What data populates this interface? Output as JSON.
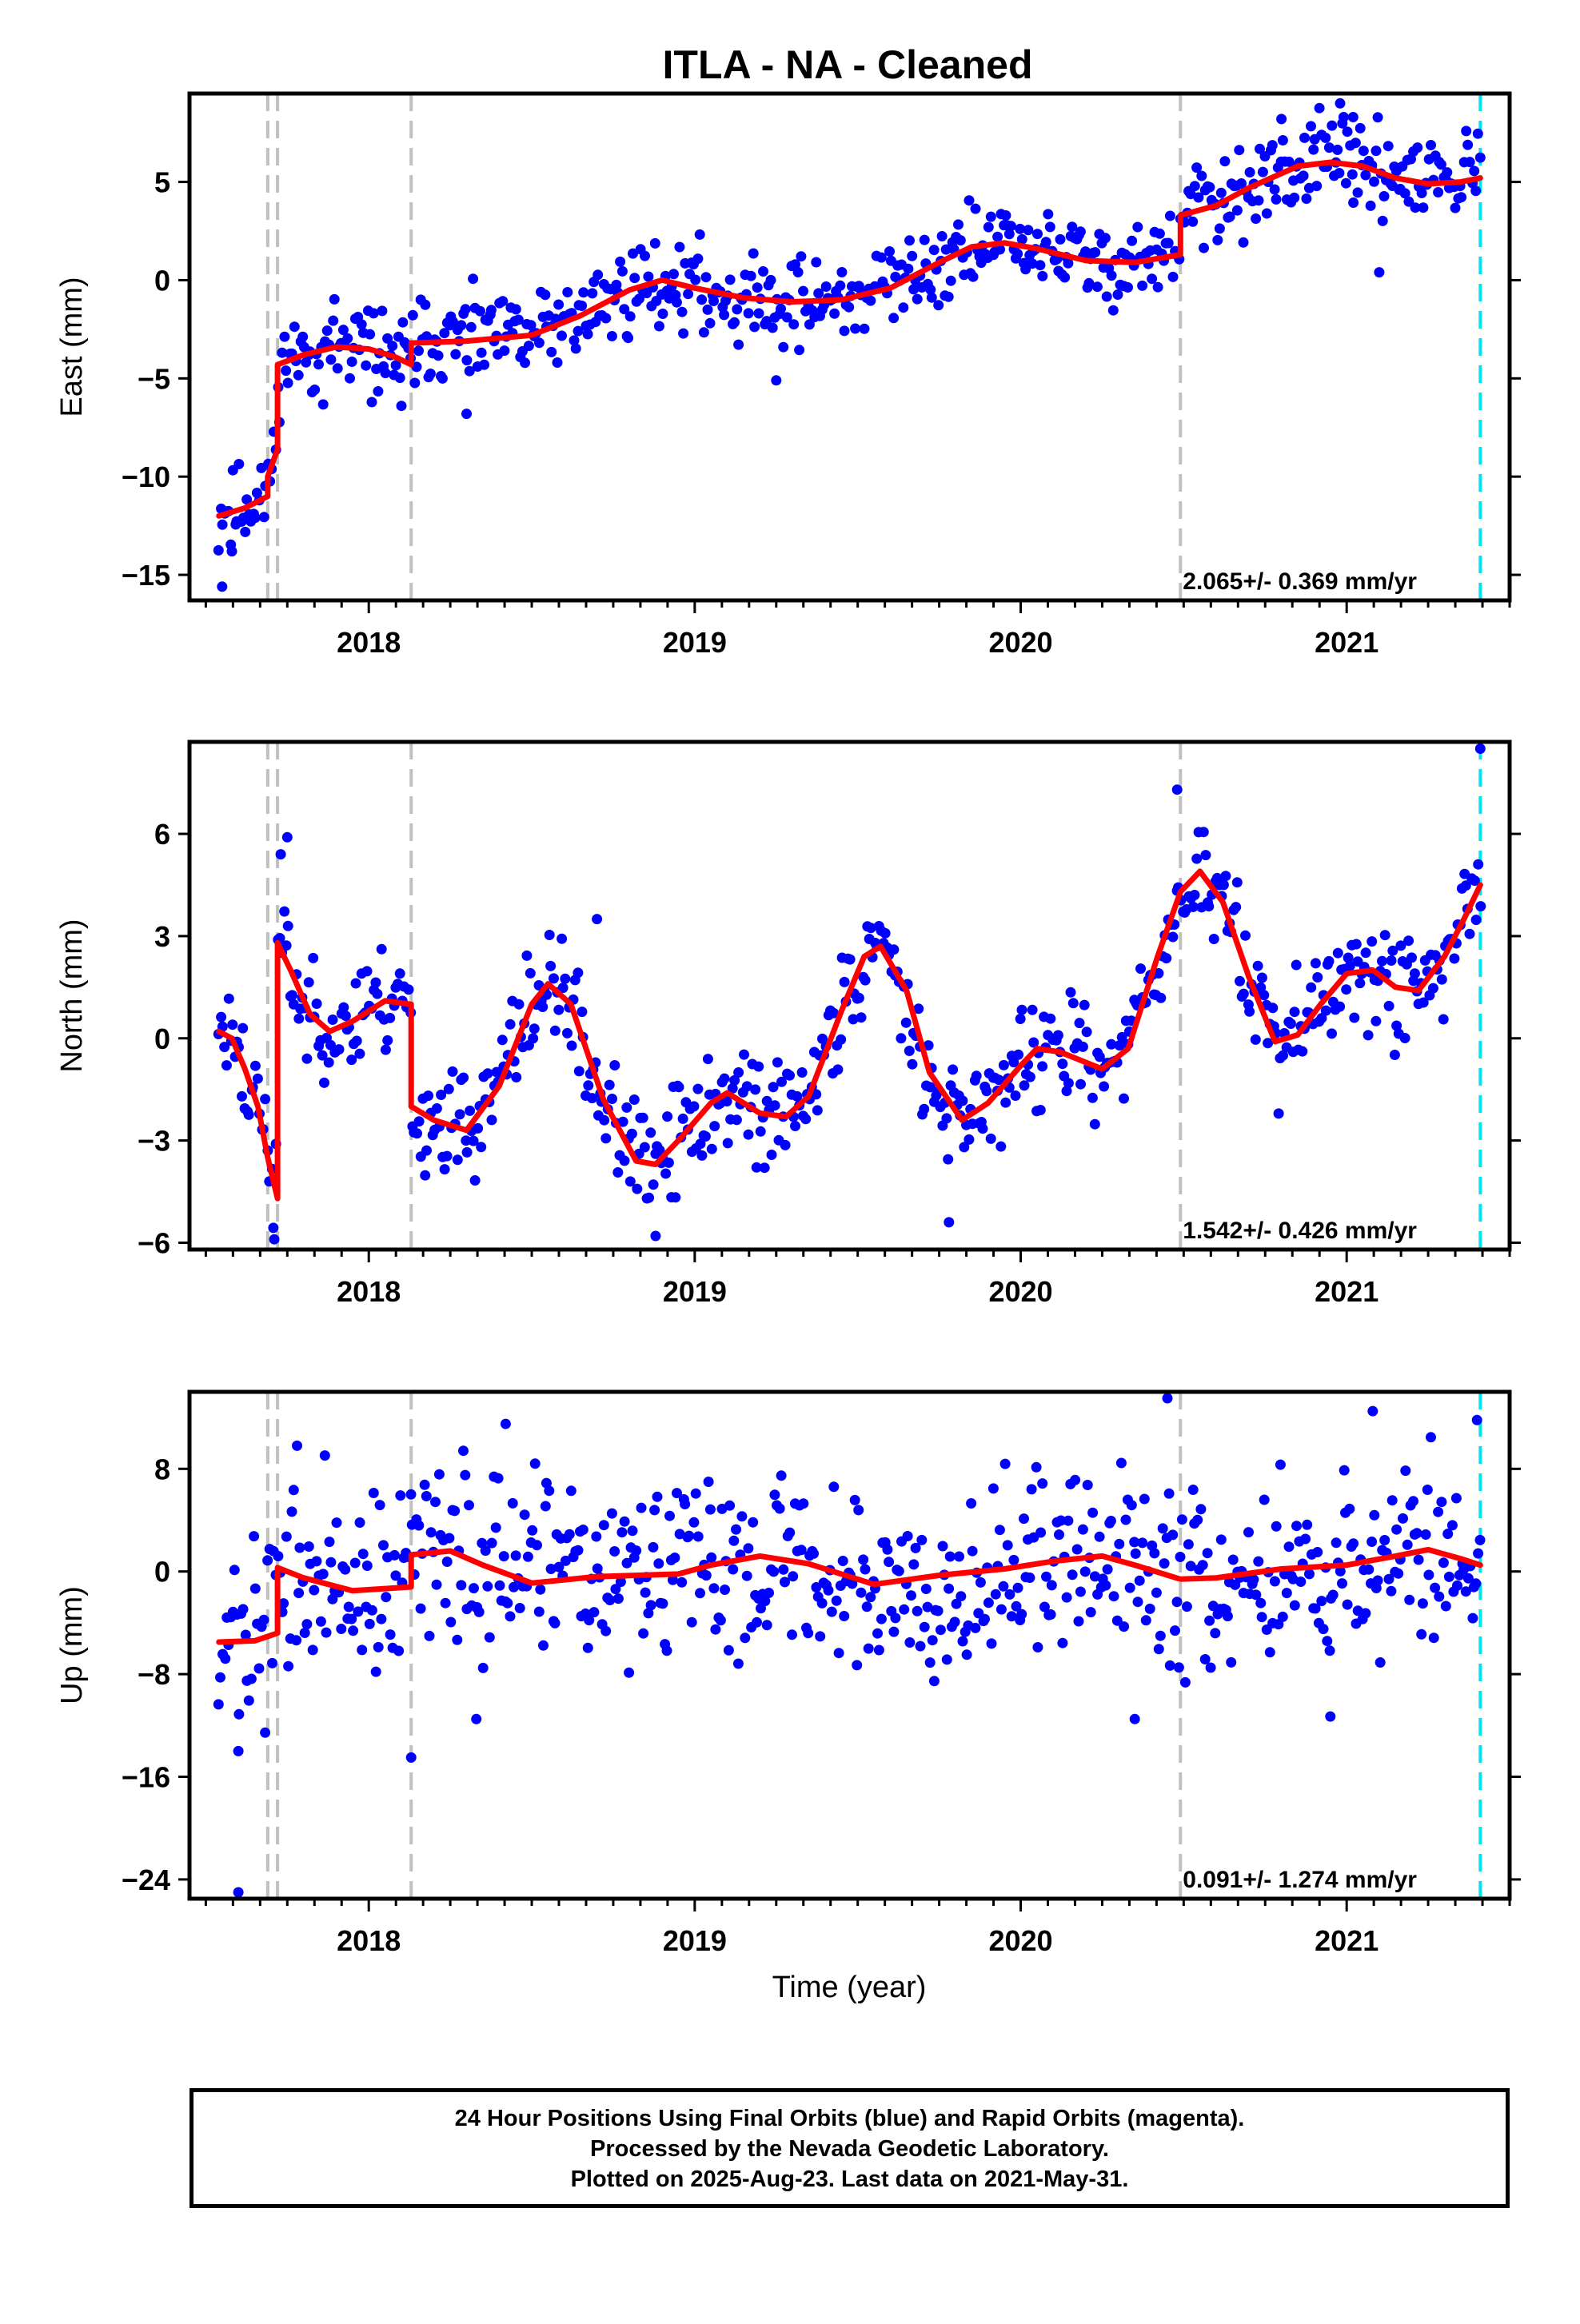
{
  "title": "ITLA  - NA - Cleaned",
  "xlabel": "Time (year)",
  "footer": {
    "line1": "24 Hour Positions Using Final Orbits (blue) and Rapid Orbits (magenta).",
    "line2": "Processed by the Nevada Geodetic Laboratory.",
    "line3": "Plotted on 2025-Aug-23. Last data on 2021-May-31."
  },
  "colors": {
    "points": "#0000ff",
    "model": "#ff0000",
    "equipment_change": "#c0c0c0",
    "last_data": "#00e5ee",
    "frame": "#000000"
  },
  "chart_data": [
    {
      "type": "scatter",
      "ylabel": "East (mm)",
      "xlim": [
        2017.45,
        2021.5
      ],
      "ylim": [
        -16.3,
        9.5
      ],
      "x_ticks": [
        2018,
        2019,
        2020,
        2021
      ],
      "y_ticks": [
        -15,
        -10,
        -5,
        0,
        5
      ],
      "y_tick_labels": [
        "−15",
        "−10",
        "−5",
        "0",
        "5"
      ],
      "rate": "2.065+/- 0.369 mm/yr",
      "grey_dashed_lines_x": [
        2017.69,
        2017.72,
        2018.13,
        2020.49
      ],
      "cyan_dashed_line_x": 2021.41,
      "model_curve": [
        [
          2017.54,
          -12.0
        ],
        [
          2017.62,
          -11.6
        ],
        [
          2017.69,
          -11.0
        ],
        [
          2017.69,
          -10.0
        ],
        [
          2017.72,
          -8.6
        ],
        [
          2017.72,
          -4.3
        ],
        [
          2017.8,
          -3.8
        ],
        [
          2017.9,
          -3.4
        ],
        [
          2018.0,
          -3.5
        ],
        [
          2018.08,
          -3.9
        ],
        [
          2018.13,
          -4.3
        ],
        [
          2018.13,
          -3.2
        ],
        [
          2018.3,
          -3.1
        ],
        [
          2018.5,
          -2.8
        ],
        [
          2018.65,
          -1.8
        ],
        [
          2018.8,
          -0.5
        ],
        [
          2018.9,
          0.0
        ],
        [
          2019.0,
          -0.4
        ],
        [
          2019.15,
          -0.9
        ],
        [
          2019.3,
          -1.1
        ],
        [
          2019.45,
          -1.0
        ],
        [
          2019.6,
          -0.4
        ],
        [
          2019.75,
          0.9
        ],
        [
          2019.85,
          1.7
        ],
        [
          2019.95,
          1.9
        ],
        [
          2020.05,
          1.6
        ],
        [
          2020.2,
          1.0
        ],
        [
          2020.35,
          0.9
        ],
        [
          2020.49,
          1.3
        ],
        [
          2020.49,
          3.3
        ],
        [
          2020.6,
          3.8
        ],
        [
          2020.7,
          4.7
        ],
        [
          2020.85,
          5.8
        ],
        [
          2020.95,
          6.0
        ],
        [
          2021.05,
          5.8
        ],
        [
          2021.15,
          5.2
        ],
        [
          2021.25,
          4.9
        ],
        [
          2021.35,
          5.0
        ],
        [
          2021.41,
          5.2
        ]
      ],
      "scatter": {
        "n": 620,
        "start": 2017.54,
        "end": 2021.41,
        "noise": 1.1,
        "seed": 11,
        "outliers": [
          [
            2017.55,
            -15.6
          ],
          [
            2017.58,
            -13.8
          ],
          [
            2018.1,
            -6.4
          ],
          [
            2018.3,
            -6.8
          ],
          [
            2019.25,
            -5.1
          ],
          [
            2020.98,
            9.0
          ],
          [
            2021.02,
            8.3
          ],
          [
            2020.8,
            8.2
          ],
          [
            2021.1,
            0.4
          ]
        ]
      }
    },
    {
      "type": "scatter",
      "ylabel": "North (mm)",
      "xlim": [
        2017.45,
        2021.5
      ],
      "ylim": [
        -6.2,
        8.7
      ],
      "x_ticks": [
        2018,
        2019,
        2020,
        2021
      ],
      "y_ticks": [
        -6,
        -3,
        0,
        3,
        6
      ],
      "y_tick_labels": [
        "−6",
        "−3",
        "0",
        "3",
        "6"
      ],
      "rate": "1.542+/- 0.426 mm/yr",
      "grey_dashed_lines_x": [
        2017.69,
        2017.72,
        2018.13,
        2020.49
      ],
      "cyan_dashed_line_x": 2021.41,
      "model_curve": [
        [
          2017.54,
          0.2
        ],
        [
          2017.58,
          0.0
        ],
        [
          2017.62,
          -0.9
        ],
        [
          2017.66,
          -2.0
        ],
        [
          2017.69,
          -3.5
        ],
        [
          2017.72,
          -4.7
        ],
        [
          2017.72,
          2.8
        ],
        [
          2017.76,
          2.0
        ],
        [
          2017.82,
          0.7
        ],
        [
          2017.88,
          0.2
        ],
        [
          2017.95,
          0.5
        ],
        [
          2018.05,
          1.1
        ],
        [
          2018.13,
          1.0
        ],
        [
          2018.13,
          -2.0
        ],
        [
          2018.2,
          -2.4
        ],
        [
          2018.3,
          -2.7
        ],
        [
          2018.4,
          -1.4
        ],
        [
          2018.5,
          1.0
        ],
        [
          2018.55,
          1.6
        ],
        [
          2018.62,
          1.0
        ],
        [
          2018.72,
          -1.8
        ],
        [
          2018.82,
          -3.6
        ],
        [
          2018.88,
          -3.7
        ],
        [
          2018.95,
          -3.0
        ],
        [
          2019.05,
          -1.9
        ],
        [
          2019.1,
          -1.6
        ],
        [
          2019.2,
          -2.2
        ],
        [
          2019.28,
          -2.3
        ],
        [
          2019.35,
          -1.7
        ],
        [
          2019.45,
          0.8
        ],
        [
          2019.52,
          2.4
        ],
        [
          2019.57,
          2.7
        ],
        [
          2019.65,
          1.4
        ],
        [
          2019.72,
          -1.0
        ],
        [
          2019.82,
          -2.4
        ],
        [
          2019.9,
          -1.9
        ],
        [
          2020.0,
          -0.8
        ],
        [
          2020.05,
          -0.3
        ],
        [
          2020.12,
          -0.4
        ],
        [
          2020.25,
          -0.9
        ],
        [
          2020.33,
          -0.3
        ],
        [
          2020.42,
          2.4
        ],
        [
          2020.49,
          4.3
        ],
        [
          2020.55,
          4.9
        ],
        [
          2020.62,
          4.0
        ],
        [
          2020.7,
          1.8
        ],
        [
          2020.78,
          -0.1
        ],
        [
          2020.85,
          0.1
        ],
        [
          2020.92,
          1.0
        ],
        [
          2021.0,
          1.9
        ],
        [
          2021.08,
          2.0
        ],
        [
          2021.15,
          1.5
        ],
        [
          2021.22,
          1.4
        ],
        [
          2021.3,
          2.4
        ],
        [
          2021.36,
          3.5
        ],
        [
          2021.41,
          4.5
        ]
      ],
      "scatter": {
        "n": 620,
        "start": 2017.54,
        "end": 2021.41,
        "noise": 0.8,
        "seed": 23,
        "outliers": [
          [
            2017.73,
            5.4
          ],
          [
            2017.75,
            5.9
          ],
          [
            2017.71,
            -5.9
          ],
          [
            2018.88,
            -5.8
          ],
          [
            2019.78,
            -5.4
          ],
          [
            2020.48,
            7.3
          ],
          [
            2021.41,
            8.5
          ],
          [
            2018.7,
            3.5
          ]
        ]
      }
    },
    {
      "type": "scatter",
      "ylabel": "Up (mm)",
      "xlim": [
        2017.45,
        2021.5
      ],
      "ylim": [
        -25.5,
        14.0
      ],
      "x_ticks": [
        2018,
        2019,
        2020,
        2021
      ],
      "y_ticks": [
        -24,
        -16,
        -8,
        0,
        8
      ],
      "y_tick_labels": [
        "−24",
        "−16",
        "−8",
        "0",
        "8"
      ],
      "rate": "0.091+/- 1.274 mm/yr",
      "grey_dashed_lines_x": [
        2017.69,
        2017.72,
        2018.13,
        2020.49
      ],
      "cyan_dashed_line_x": 2021.41,
      "model_curve": [
        [
          2017.54,
          -5.5
        ],
        [
          2017.65,
          -5.4
        ],
        [
          2017.72,
          -4.8
        ],
        [
          2017.72,
          0.3
        ],
        [
          2017.8,
          -0.5
        ],
        [
          2017.95,
          -1.5
        ],
        [
          2018.13,
          -1.2
        ],
        [
          2018.13,
          1.3
        ],
        [
          2018.25,
          1.6
        ],
        [
          2018.35,
          0.5
        ],
        [
          2018.5,
          -0.9
        ],
        [
          2018.7,
          -0.4
        ],
        [
          2018.95,
          -0.2
        ],
        [
          2019.05,
          0.5
        ],
        [
          2019.2,
          1.2
        ],
        [
          2019.35,
          0.6
        ],
        [
          2019.55,
          -1.0
        ],
        [
          2019.75,
          -0.3
        ],
        [
          2019.95,
          0.2
        ],
        [
          2020.1,
          0.8
        ],
        [
          2020.25,
          1.2
        ],
        [
          2020.35,
          0.5
        ],
        [
          2020.49,
          -0.6
        ],
        [
          2020.6,
          -0.5
        ],
        [
          2020.8,
          0.2
        ],
        [
          2021.0,
          0.5
        ],
        [
          2021.15,
          1.2
        ],
        [
          2021.25,
          1.7
        ],
        [
          2021.35,
          1.0
        ],
        [
          2021.41,
          0.5
        ]
      ],
      "scatter": {
        "n": 620,
        "start": 2017.54,
        "end": 2021.41,
        "noise": 3.6,
        "seed": 37,
        "outliers": [
          [
            2017.6,
            -25.0
          ],
          [
            2017.6,
            -14.0
          ],
          [
            2018.13,
            -14.5
          ],
          [
            2017.78,
            9.8
          ],
          [
            2018.42,
            11.5
          ],
          [
            2018.33,
            -11.5
          ],
          [
            2020.45,
            13.5
          ],
          [
            2020.95,
            -11.3
          ],
          [
            2021.08,
            12.5
          ],
          [
            2021.4,
            11.8
          ],
          [
            2020.35,
            -11.5
          ]
        ]
      }
    }
  ]
}
